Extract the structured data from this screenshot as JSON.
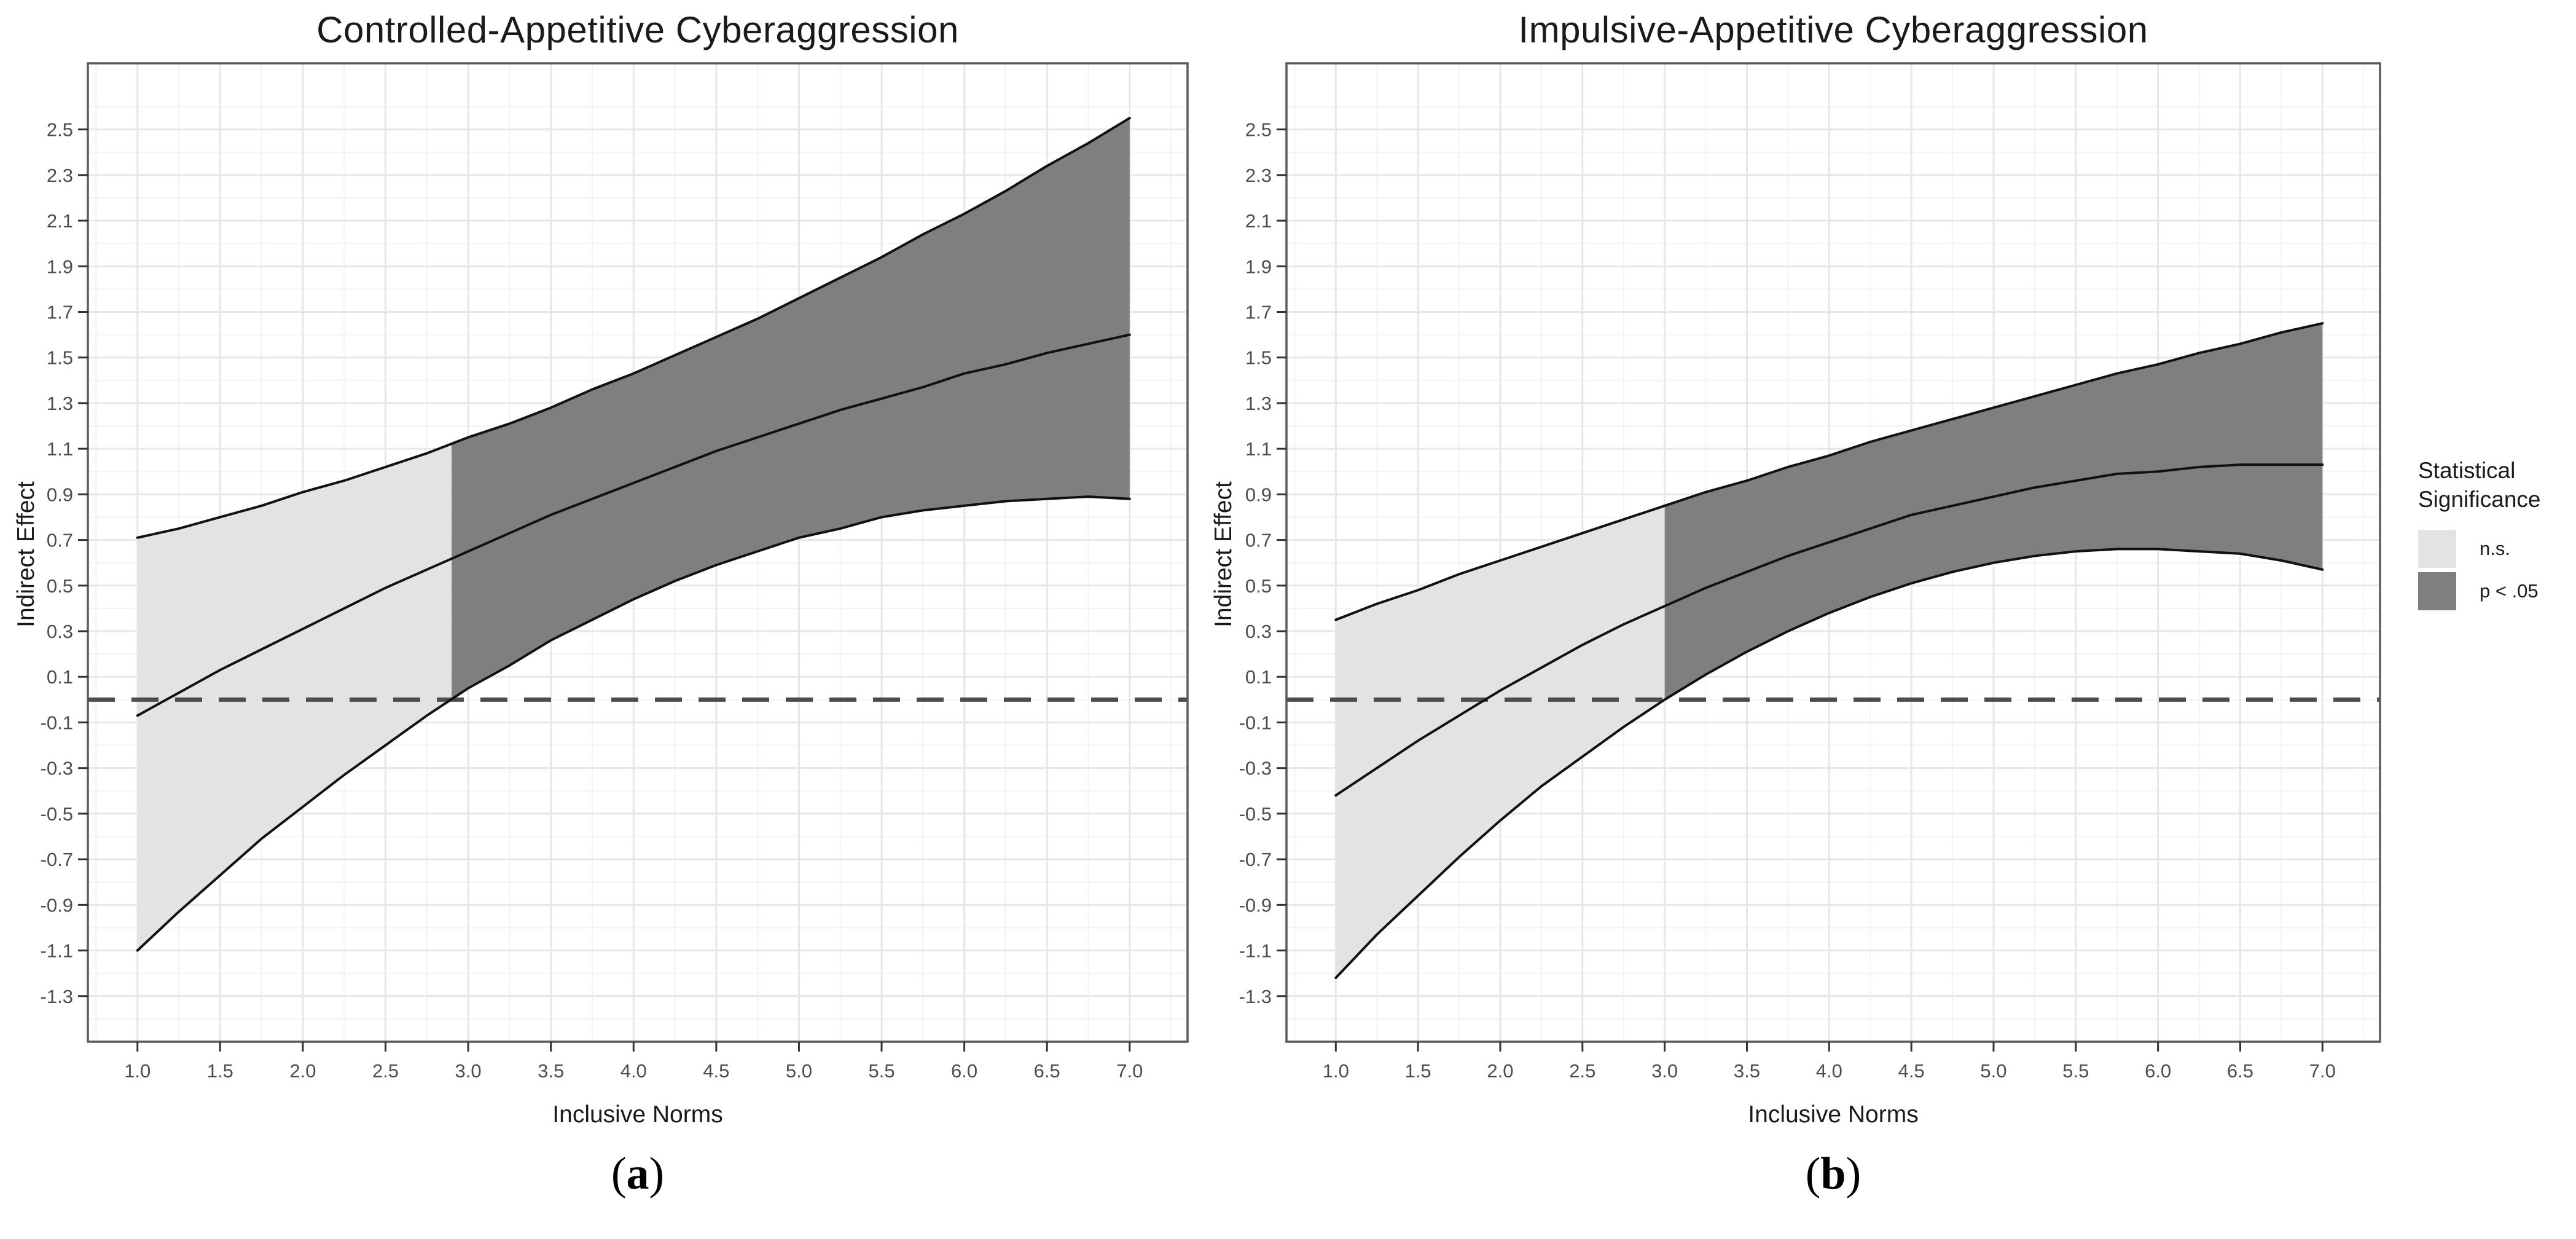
{
  "figure": {
    "background": "#ffffff",
    "text_color": "#1a1a1a",
    "tick_text_color": "#4d4d4d",
    "grid_major_color": "#e7e7e7",
    "grid_minor_color": "#f3f3f3",
    "panel_border_color": "#595959",
    "curve_color": "#111111",
    "zero_line_color": "#4d4d4d"
  },
  "panel_a": {
    "title": "Controlled-Appetitive Cyberaggression",
    "y_axis_label": "Indirect Effect",
    "x_axis_label": "Inclusive Norms",
    "caption_prefix": "(",
    "caption_letter": "a",
    "caption_suffix": ")"
  },
  "panel_b": {
    "title": "Impulsive-Appetitive Cyberaggression",
    "y_axis_label": "Indirect Effect",
    "x_axis_label": "Inclusive Norms",
    "caption_prefix": "(",
    "caption_letter": "b",
    "caption_suffix": ")"
  },
  "legend": {
    "title_line1": "Statistical",
    "title_line2": "Significance",
    "items": [
      {
        "label": "n.s.",
        "color": "#e3e3e3"
      },
      {
        "label": "p < .05",
        "color": "#7f7f7f"
      }
    ]
  },
  "chart_data": [
    {
      "type": "area",
      "panel": "a",
      "title": "Controlled-Appetitive Cyberaggression",
      "xlabel": "Inclusive Norms",
      "ylabel": "Indirect Effect",
      "xlim": [
        0.7,
        7.35
      ],
      "ylim": [
        -1.5,
        2.79
      ],
      "x_ticks": [
        1,
        1.5,
        2,
        2.5,
        3,
        3.5,
        4,
        4.5,
        5,
        5.5,
        6,
        6.5,
        7
      ],
      "x_tick_labels": [
        "1.0",
        "1.5",
        "2.0",
        "2.5",
        "3.0",
        "3.5",
        "4.0",
        "4.5",
        "5.0",
        "5.5",
        "6.0",
        "6.5",
        "7.0"
      ],
      "y_ticks": [
        -1.3,
        -1.1,
        -0.9,
        -0.7,
        -0.5,
        -0.3,
        -0.1,
        0.1,
        0.3,
        0.5,
        0.7,
        0.9,
        1.1,
        1.3,
        1.5,
        1.7,
        1.9,
        2.1,
        2.3,
        2.5
      ],
      "y_tick_labels": [
        "-1.3",
        "-1.1",
        "-0.9",
        "-0.7",
        "-0.5",
        "-0.3",
        "-0.1",
        "0.1",
        "0.3",
        "0.5",
        "0.7",
        "0.9",
        "1.1",
        "1.3",
        "1.5",
        "1.7",
        "1.9",
        "2.1",
        "2.3",
        "2.5"
      ],
      "grid": "major+minor",
      "legend_position": "right",
      "hline": {
        "y": 0,
        "style": "dashed",
        "color": "#4d4d4d"
      },
      "significance_transition_x": 2.9,
      "regions": [
        {
          "label": "n.s.",
          "x_range": [
            1,
            2.9
          ],
          "color": "#e3e3e3"
        },
        {
          "label": "p < .05",
          "x_range": [
            2.9,
            7
          ],
          "color": "#7f7f7f"
        }
      ],
      "x": [
        1,
        1.25,
        1.5,
        1.75,
        2,
        2.25,
        2.5,
        2.75,
        3,
        3.25,
        3.5,
        3.75,
        4,
        4.25,
        4.5,
        4.75,
        5,
        5.25,
        5.5,
        5.75,
        6,
        6.25,
        6.5,
        6.75,
        7
      ],
      "series": [
        {
          "name": "indirect_effect_estimate",
          "values": [
            -0.07,
            0.03,
            0.13,
            0.22,
            0.31,
            0.4,
            0.49,
            0.57,
            0.65,
            0.73,
            0.81,
            0.88,
            0.95,
            1.02,
            1.09,
            1.15,
            1.21,
            1.27,
            1.32,
            1.37,
            1.43,
            1.47,
            1.52,
            1.56,
            1.6
          ]
        },
        {
          "name": "ci_upper",
          "values": [
            0.71,
            0.75,
            0.8,
            0.85,
            0.91,
            0.96,
            1.02,
            1.08,
            1.15,
            1.21,
            1.28,
            1.36,
            1.43,
            1.51,
            1.59,
            1.67,
            1.76,
            1.85,
            1.94,
            2.04,
            2.13,
            2.23,
            2.34,
            2.44,
            2.55
          ]
        },
        {
          "name": "ci_lower",
          "values": [
            -1.1,
            -0.93,
            -0.77,
            -0.61,
            -0.47,
            -0.33,
            -0.2,
            -0.07,
            0.05,
            0.15,
            0.26,
            0.35,
            0.44,
            0.52,
            0.59,
            0.65,
            0.71,
            0.75,
            0.8,
            0.83,
            0.85,
            0.87,
            0.88,
            0.89,
            0.88
          ]
        }
      ]
    },
    {
      "type": "area",
      "panel": "b",
      "title": "Impulsive-Appetitive Cyberaggression",
      "xlabel": "Inclusive Norms",
      "ylabel": "Indirect Effect",
      "xlim": [
        0.7,
        7.35
      ],
      "ylim": [
        -1.5,
        2.79
      ],
      "x_ticks": [
        1,
        1.5,
        2,
        2.5,
        3,
        3.5,
        4,
        4.5,
        5,
        5.5,
        6,
        6.5,
        7
      ],
      "x_tick_labels": [
        "1.0",
        "1.5",
        "2.0",
        "2.5",
        "3.0",
        "3.5",
        "4.0",
        "4.5",
        "5.0",
        "5.5",
        "6.0",
        "6.5",
        "7.0"
      ],
      "y_ticks": [
        -1.3,
        -1.1,
        -0.9,
        -0.7,
        -0.5,
        -0.3,
        -0.1,
        0.1,
        0.3,
        0.5,
        0.7,
        0.9,
        1.1,
        1.3,
        1.5,
        1.7,
        1.9,
        2.1,
        2.3,
        2.5
      ],
      "y_tick_labels": [
        "-1.3",
        "-1.1",
        "-0.9",
        "-0.7",
        "-0.5",
        "-0.3",
        "-0.1",
        "0.1",
        "0.3",
        "0.5",
        "0.7",
        "0.9",
        "1.1",
        "1.3",
        "1.5",
        "1.7",
        "1.9",
        "2.1",
        "2.3",
        "2.5"
      ],
      "grid": "major+minor",
      "legend_position": "right",
      "hline": {
        "y": 0,
        "style": "dashed",
        "color": "#4d4d4d"
      },
      "significance_transition_x": 3.0,
      "regions": [
        {
          "label": "n.s.",
          "x_range": [
            1,
            3.0
          ],
          "color": "#e3e3e3"
        },
        {
          "label": "p < .05",
          "x_range": [
            3.0,
            7
          ],
          "color": "#7f7f7f"
        }
      ],
      "x": [
        1,
        1.25,
        1.5,
        1.75,
        2,
        2.25,
        2.5,
        2.75,
        3,
        3.25,
        3.5,
        3.75,
        4,
        4.25,
        4.5,
        4.75,
        5,
        5.25,
        5.5,
        5.75,
        6,
        6.25,
        6.5,
        6.75,
        7
      ],
      "series": [
        {
          "name": "indirect_effect_estimate",
          "values": [
            -0.42,
            -0.3,
            -0.18,
            -0.07,
            0.04,
            0.14,
            0.24,
            0.33,
            0.41,
            0.49,
            0.56,
            0.63,
            0.69,
            0.75,
            0.81,
            0.85,
            0.89,
            0.93,
            0.96,
            0.99,
            1.0,
            1.02,
            1.03,
            1.03,
            1.03
          ]
        },
        {
          "name": "ci_upper",
          "values": [
            0.35,
            0.42,
            0.48,
            0.55,
            0.61,
            0.67,
            0.73,
            0.79,
            0.85,
            0.91,
            0.96,
            1.02,
            1.07,
            1.13,
            1.18,
            1.23,
            1.28,
            1.33,
            1.38,
            1.43,
            1.47,
            1.52,
            1.56,
            1.61,
            1.65
          ]
        },
        {
          "name": "ci_lower",
          "values": [
            -1.22,
            -1.03,
            -0.86,
            -0.69,
            -0.53,
            -0.38,
            -0.25,
            -0.12,
            0.0,
            0.11,
            0.21,
            0.3,
            0.38,
            0.45,
            0.51,
            0.56,
            0.6,
            0.63,
            0.65,
            0.66,
            0.66,
            0.65,
            0.64,
            0.61,
            0.57
          ]
        }
      ]
    }
  ]
}
